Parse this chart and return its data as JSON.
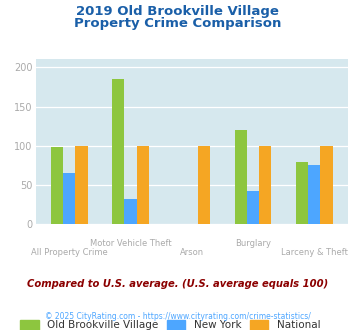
{
  "title_line1": "2019 Old Brookville Village",
  "title_line2": "Property Crime Comparison",
  "categories": [
    "All Property Crime",
    "Motor Vehicle Theft",
    "Arson",
    "Burglary",
    "Larceny & Theft"
  ],
  "cat_row1": [
    "",
    "Motor Vehicle Theft",
    "",
    "Burglary",
    ""
  ],
  "cat_row2": [
    "All Property Crime",
    "",
    "Arson",
    "",
    "Larceny & Theft"
  ],
  "series": {
    "Old Brookville Village": [
      99,
      185,
      0,
      120,
      80
    ],
    "New York": [
      65,
      32,
      0,
      43,
      75
    ],
    "National": [
      100,
      100,
      100,
      100,
      100
    ]
  },
  "colors": {
    "Old Brookville Village": "#8dc63f",
    "New York": "#4da6ff",
    "National": "#f5a623"
  },
  "ylim": [
    0,
    210
  ],
  "yticks": [
    0,
    50,
    100,
    150,
    200
  ],
  "bg_color": "#d6e8ee",
  "title_color": "#1a5fa8",
  "axis_label_color": "#aaaaaa",
  "legend_label_color": "#333333",
  "subtitle": "Compared to U.S. average. (U.S. average equals 100)",
  "subtitle_color": "#8b0000",
  "footer": "© 2025 CityRating.com - https://www.cityrating.com/crime-statistics/",
  "footer_color": "#4da6ff",
  "bar_width": 0.2
}
